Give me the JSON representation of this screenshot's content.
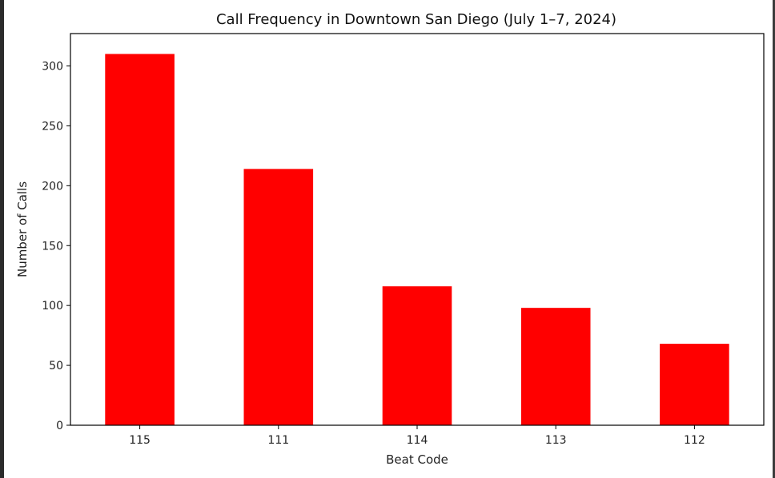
{
  "chart_data": {
    "type": "bar",
    "title": "Call Frequency in Downtown San Diego (July 1–7, 2024)",
    "xlabel": "Beat Code",
    "ylabel": "Number of Calls",
    "categories": [
      "115",
      "111",
      "114",
      "113",
      "112"
    ],
    "values": [
      310,
      214,
      116,
      98,
      68
    ],
    "ylim": [
      0,
      325
    ],
    "yticks": [
      0,
      50,
      100,
      150,
      200,
      250,
      300
    ],
    "bar_color": "#ff0000",
    "grid": false,
    "legend": "none"
  }
}
